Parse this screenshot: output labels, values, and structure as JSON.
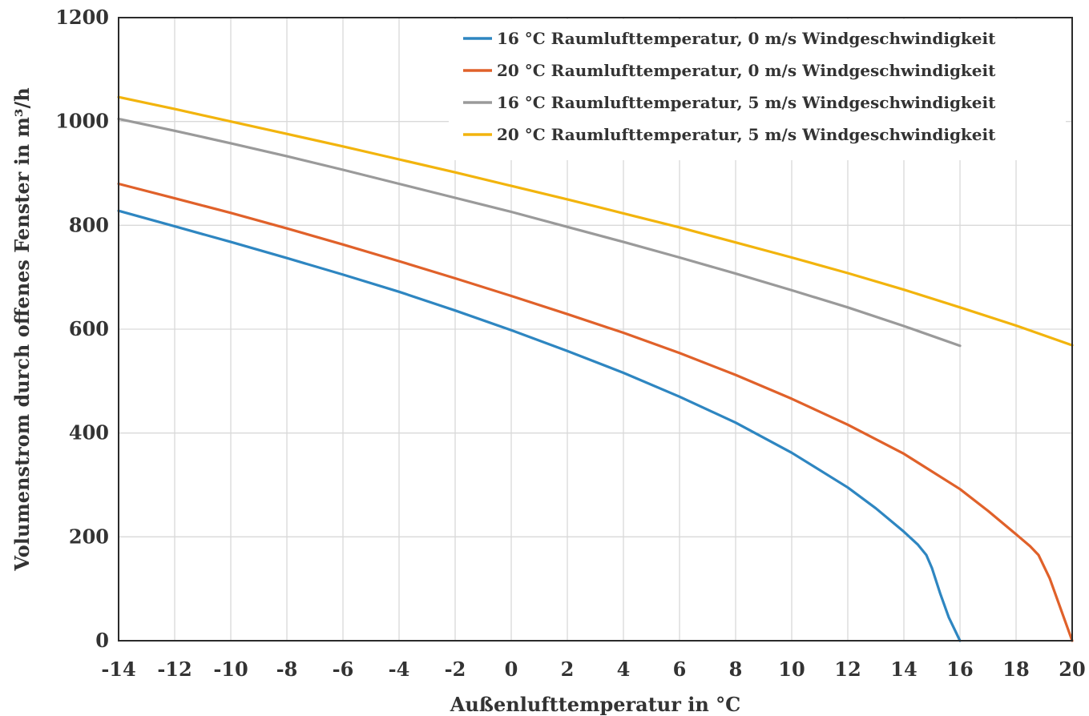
{
  "chart_data": {
    "type": "line",
    "title": "",
    "xlabel": "Außenlufttemperatur in °C",
    "ylabel": "Volumenstrom durch offenes Fenster in m³/h",
    "xlim": [
      -14,
      20
    ],
    "ylim": [
      0,
      1200
    ],
    "x_ticks": [
      -14,
      -12,
      -10,
      -8,
      -6,
      -4,
      -2,
      0,
      2,
      4,
      6,
      8,
      10,
      12,
      14,
      16,
      18,
      20
    ],
    "y_ticks": [
      0,
      200,
      400,
      600,
      800,
      1000,
      1200
    ],
    "grid": true,
    "legend_position": "top-right",
    "series": [
      {
        "name": "16 °C Raumlufttemperatur, 0 m/s Windgeschwindigkeit",
        "color": "#2e86c1",
        "x": [
          -14,
          -12,
          -10,
          -8,
          -6,
          -4,
          -2,
          0,
          2,
          4,
          6,
          8,
          10,
          12,
          13,
          14,
          14.5,
          14.8,
          15,
          15.3,
          15.6,
          16
        ],
        "y": [
          828,
          798,
          768,
          737,
          705,
          672,
          636,
          598,
          558,
          516,
          470,
          420,
          362,
          295,
          255,
          210,
          185,
          165,
          140,
          90,
          45,
          0
        ]
      },
      {
        "name": "20 °C Raumlufttemperatur, 0 m/s Windgeschwindigkeit",
        "color": "#e0612a",
        "x": [
          -14,
          -12,
          -10,
          -8,
          -6,
          -4,
          -2,
          0,
          2,
          4,
          6,
          8,
          10,
          12,
          14,
          16,
          17,
          18,
          18.5,
          18.8,
          19.2,
          19.6,
          20
        ],
        "y": [
          880,
          852,
          824,
          794,
          763,
          731,
          698,
          664,
          629,
          593,
          554,
          512,
          466,
          416,
          360,
          292,
          250,
          205,
          182,
          165,
          120,
          60,
          0
        ]
      },
      {
        "name": "16 °C Raumlufttemperatur, 5 m/s Windgeschwindigkeit",
        "color": "#9a9a9a",
        "x": [
          -14,
          -12,
          -10,
          -8,
          -6,
          -4,
          -2,
          0,
          2,
          4,
          6,
          8,
          10,
          12,
          14,
          16
        ],
        "y": [
          1005,
          982,
          958,
          933,
          907,
          880,
          853,
          826,
          797,
          768,
          738,
          707,
          675,
          642,
          606,
          568
        ]
      },
      {
        "name": "20 °C Raumlufttemperatur, 5 m/s Windgeschwindigkeit",
        "color": "#f2b40d",
        "x": [
          -14,
          -12,
          -10,
          -8,
          -6,
          -4,
          -2,
          0,
          2,
          4,
          6,
          8,
          10,
          12,
          14,
          16,
          18,
          20
        ],
        "y": [
          1047,
          1024,
          1000,
          976,
          952,
          927,
          902,
          876,
          850,
          823,
          796,
          767,
          738,
          708,
          676,
          642,
          607,
          569
        ]
      }
    ]
  }
}
